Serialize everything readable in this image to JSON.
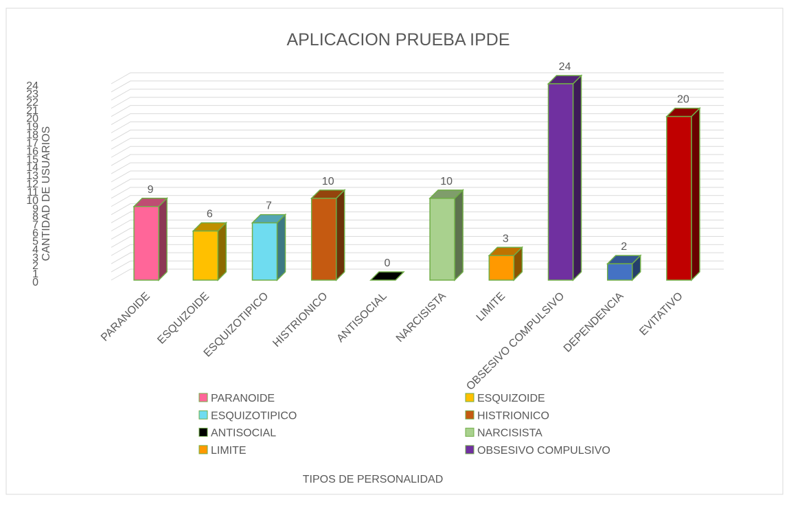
{
  "chart_data": {
    "type": "bar3d",
    "title": "APLICACION PRUEBA IPDE",
    "x_label": "TIPOS DE PERSONALIDAD",
    "y_label": "CANTIDAD DE USUARIOS",
    "categories": [
      "PARANOIDE",
      "ESQUIZOIDE",
      "ESQUIZOTIPICO",
      "HISTRIONICO",
      "ANTISOCIAL",
      "NARCISISTA",
      "LIMITE",
      "OBSESIVO COMPULSIVO",
      "DEPENDENCIA",
      "EVITATIVO"
    ],
    "values": [
      9,
      6,
      7,
      10,
      0,
      10,
      3,
      24,
      2,
      20
    ],
    "colors": [
      "#ff6699",
      "#ffc000",
      "#6fdcf0",
      "#c55a11",
      "#000000",
      "#a9d18e",
      "#ff9900",
      "#7030a0",
      "#4472c4",
      "#c00000"
    ],
    "edge_color": "#70ad47",
    "ylim": [
      0,
      24
    ],
    "yticks": [
      0,
      1,
      2,
      3,
      4,
      5,
      6,
      7,
      8,
      9,
      10,
      11,
      12,
      13,
      14,
      15,
      16,
      17,
      18,
      19,
      20,
      21,
      22,
      23,
      24
    ],
    "grid": true,
    "legend": "bottom"
  }
}
